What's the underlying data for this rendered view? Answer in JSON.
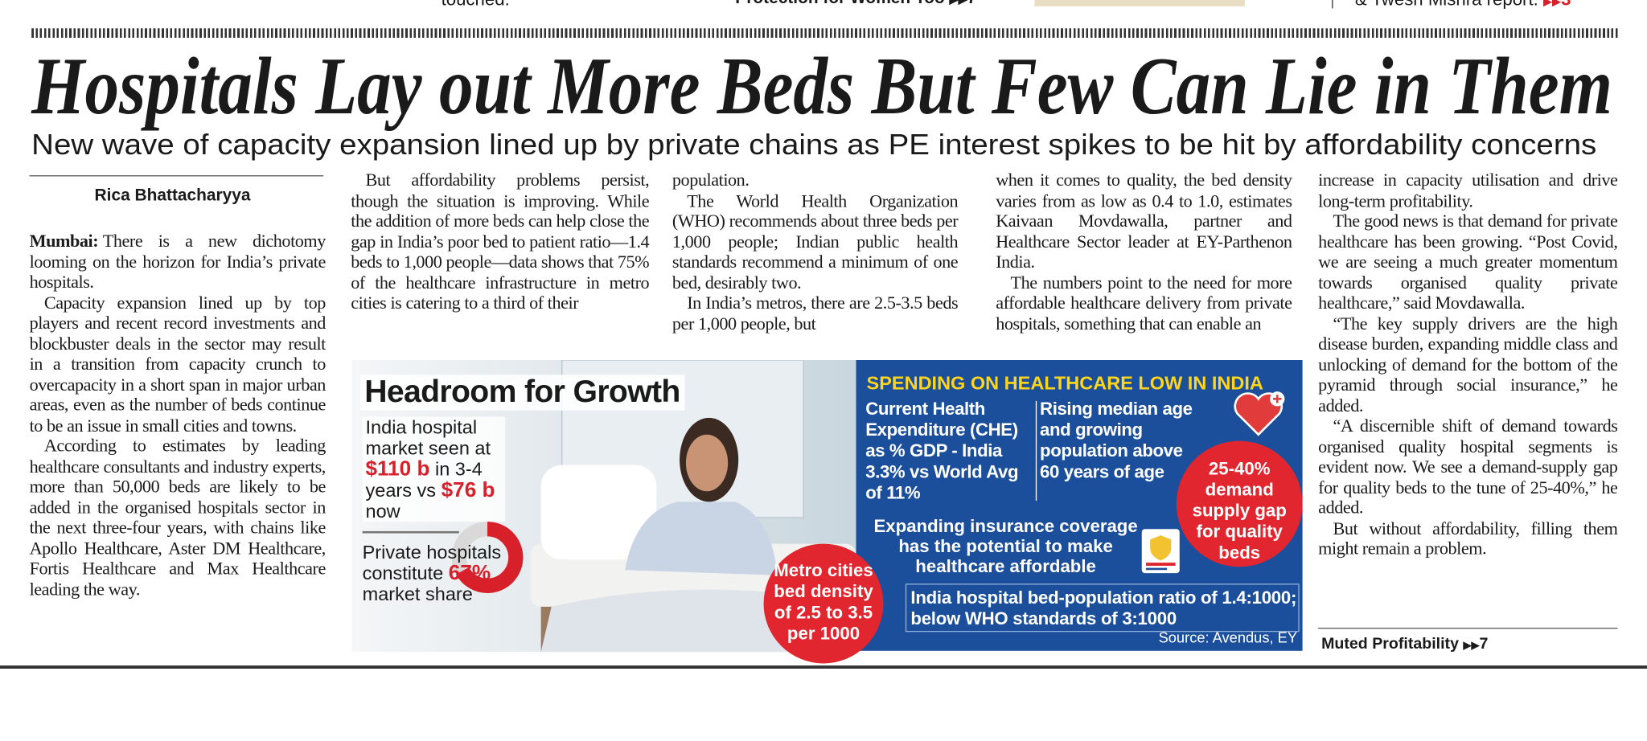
{
  "top_strip": {
    "left": "touched.",
    "center": "Protection for Women Too",
    "center_page": "7",
    "right": "& Twesh Mishra report.",
    "right_page": "3"
  },
  "headline": "Hospitals Lay out More Beds But Few Can Lie in Them",
  "subheadline": "New wave of capacity expansion lined up by private chains as PE interest spikes to be hit by affordability concerns",
  "byline": "Rica Bhattacharyya",
  "dateline": "Mumbai:",
  "columns": [
    [
      "There is a new dichotomy looming on the horizon for India’s private hospitals.",
      "Capacity expansion lined up by top players and recent record investments and blockbuster deals in the sector may result in a transition from capacity crunch to overcapacity in a short span in major urban areas, even as the number of beds continue to be an issue in small cities and towns.",
      "According to estimates by leading healthcare consultants and industry experts, more than 50,000 beds are likely to be added in the organised hospitals sector in the next three-four years, with chains like Apollo Healthcare, Aster DM Healthcare, Fortis Healthcare and Max Healthcare leading the way."
    ],
    [
      "But affordability problems persist, though the situation is improving. While the addition of more beds can help close the gap in India’s poor bed to patient ratio—1.4 beds to 1,000 people—data shows that 75% of the healthcare infrastructure in metro cities is catering to a third of their"
    ],
    [
      "population.",
      "The World Health Organization (WHO) recommends about three beds per 1,000 people; Indian public health standards recommend a minimum of one bed, desirably two.",
      "In India’s metros, there are 2.5-3.5 beds per 1,000 people, but"
    ],
    [
      "when it comes to quality, the bed density varies from as low as 0.4 to 1.0, estimates Kaivaan Movdawalla, partner and Healthcare Sector leader at EY-Parthenon India.",
      "The numbers point to the need for more affordable healthcare delivery from private hospitals, something that can enable an"
    ],
    [
      "increase in capacity utilisation and drive long-term profitability.",
      "The good news is that demand for private healthcare has been growing. “Post Covid, we are seeing a much greater momentum towards organised quality private healthcare,” said Movdawalla.",
      "“The key supply drivers are the high disease burden, expanding middle class and unlocking of demand for the bottom of the pyramid through social insurance,” he added.",
      "“A discernible shift of demand towards organised quality hospital segments is evident now. We see a demand-supply gap for quality beds to the tune of 25-40%,” he added.",
      "But without affordability, filling them might remain a problem."
    ]
  ],
  "jump": {
    "text": "Muted Profitability",
    "page": "7"
  },
  "infographic": {
    "title": "Headroom for Growth",
    "market_size": [
      "India hospital market seen at",
      "$110 b",
      "in 3-4 years vs",
      "$76 b",
      "now"
    ],
    "private_share": {
      "before": "Private hospitals constitute",
      "share": {
        "value": 67,
        "label": "67%"
      },
      "after": "market share"
    },
    "metro_bubble": "Metro cities bed density of 2.5 to 3.5 per 1000",
    "panel_title": "SPENDING ON HEALTHCARE LOW IN INDIA",
    "che": "Current Health Expenditure (CHE) as % GDP - India 3.3% vs World Avg of 11%",
    "median_age": "Rising median age and growing population above 60 years of age",
    "gap_bubble": "25-40% demand supply gap for quality beds",
    "insurance": "Expanding insurance coverage has the potential to make healthcare affordable",
    "ratio": "India hospital bed-population ratio of 1.4:1000; below WHO standards of 3:1000",
    "source": "Source: Avendus, EY"
  }
}
